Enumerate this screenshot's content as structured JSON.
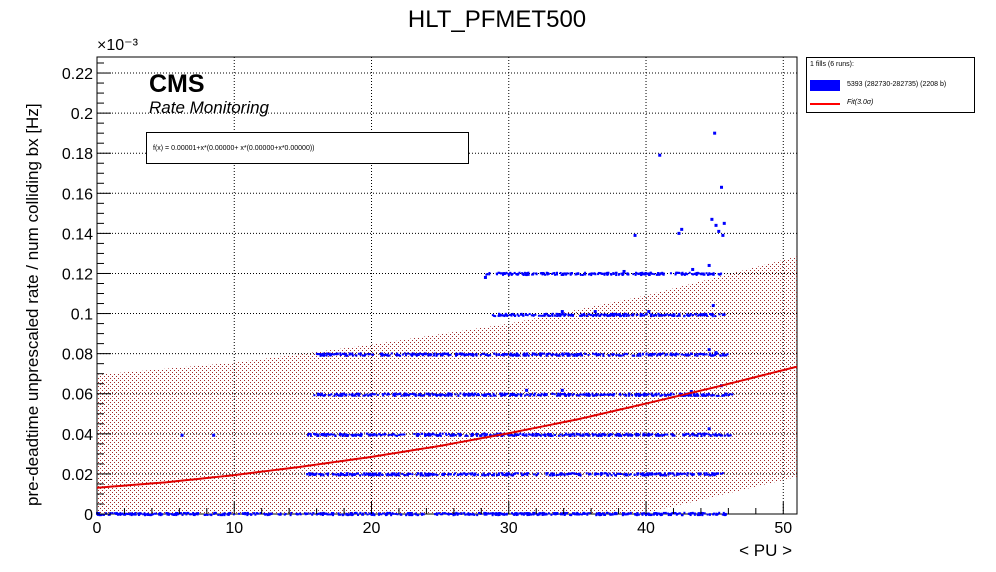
{
  "chart_data": {
    "type": "scatter",
    "title": "HLT_PFMET500",
    "xlabel": "< PU >",
    "ylabel": "pre-deadtime unprescaled rate / num colliding bx [Hz]",
    "y_exponent": "×10⁻³",
    "xlim": [
      0,
      51
    ],
    "ylim": [
      0,
      0.228
    ],
    "x_ticks": [
      "0",
      "10",
      "20",
      "30",
      "40",
      "50"
    ],
    "y_ticks": [
      "0",
      "0.02",
      "0.04",
      "0.06",
      "0.08",
      "0.1",
      "0.12",
      "0.14",
      "0.16",
      "0.18",
      "0.2",
      "0.22"
    ],
    "grid": true,
    "cms_label": "CMS",
    "cms_sublabel": "Rate Monitoring",
    "fit_formula": "f(x) = 0.00001+x*(0.00000+ x*(0.00000+x*0.00000))",
    "legend": {
      "header": "1 fills (6 runs):",
      "entries": [
        {
          "label": "5393 (282730-282735) (2208 b)",
          "color": "#0000ff",
          "kind": "box"
        },
        {
          "label": "Fit(3.0σ)",
          "color": "#ff0000",
          "kind": "line"
        }
      ]
    },
    "fit_line": {
      "x": [
        0,
        5,
        10,
        15,
        20,
        25,
        30,
        35,
        40,
        45,
        51
      ],
      "y": [
        0.0131,
        0.0158,
        0.0194,
        0.0237,
        0.0285,
        0.034,
        0.0403,
        0.0472,
        0.0551,
        0.0632,
        0.0735
      ]
    },
    "band_upper": {
      "x": [
        0,
        10,
        20,
        30,
        40,
        51
      ],
      "y": [
        0.0695,
        0.0755,
        0.0845,
        0.095,
        0.109,
        0.1285
      ]
    },
    "band_lower": {
      "x": [
        0,
        30,
        40,
        51
      ],
      "y": [
        0.0,
        0.0,
        0.0005,
        0.0185
      ]
    },
    "series": [
      {
        "color": "#0000ff",
        "bands": [
          {
            "y": 0.0,
            "x_from": 0,
            "x_to": 46
          },
          {
            "y": 0.0198,
            "x_from": 15.3,
            "x_to": 45.6
          },
          {
            "y": 0.0395,
            "x_from": 15.3,
            "x_to": 46.2
          },
          {
            "y": 0.0595,
            "x_from": 15.8,
            "x_to": 46.3
          },
          {
            "y": 0.0795,
            "x_from": 16.0,
            "x_to": 46.0
          },
          {
            "y": 0.0993,
            "x_from": 28.8,
            "x_to": 45.8
          },
          {
            "y": 0.1198,
            "x_from": 28.3,
            "x_to": 45.6
          }
        ],
        "points": [
          {
            "x": 6.2,
            "y": 0.0393
          },
          {
            "x": 8.5,
            "y": 0.0393
          },
          {
            "x": 28.3,
            "y": 0.118
          },
          {
            "x": 32.5,
            "y": 0.12
          },
          {
            "x": 37.2,
            "y": 0.12
          },
          {
            "x": 39.2,
            "y": 0.139
          },
          {
            "x": 41.0,
            "y": 0.179
          },
          {
            "x": 42.4,
            "y": 0.14
          },
          {
            "x": 42.6,
            "y": 0.142
          },
          {
            "x": 43.4,
            "y": 0.122
          },
          {
            "x": 44.6,
            "y": 0.124
          },
          {
            "x": 44.8,
            "y": 0.147
          },
          {
            "x": 45.0,
            "y": 0.19
          },
          {
            "x": 45.1,
            "y": 0.144
          },
          {
            "x": 45.3,
            "y": 0.141
          },
          {
            "x": 45.5,
            "y": 0.163
          },
          {
            "x": 45.6,
            "y": 0.139
          },
          {
            "x": 45.7,
            "y": 0.145
          },
          {
            "x": 44.6,
            "y": 0.082
          },
          {
            "x": 44.9,
            "y": 0.104
          },
          {
            "x": 33.9,
            "y": 0.101
          },
          {
            "x": 36.3,
            "y": 0.101
          },
          {
            "x": 38.4,
            "y": 0.121
          },
          {
            "x": 40.2,
            "y": 0.101
          },
          {
            "x": 45.1,
            "y": 0.0805
          },
          {
            "x": 45.5,
            "y": 0.064
          },
          {
            "x": 33.9,
            "y": 0.0617
          },
          {
            "x": 31.3,
            "y": 0.0617
          },
          {
            "x": 44.6,
            "y": 0.0425
          },
          {
            "x": 43.3,
            "y": 0.0611
          }
        ]
      }
    ]
  }
}
